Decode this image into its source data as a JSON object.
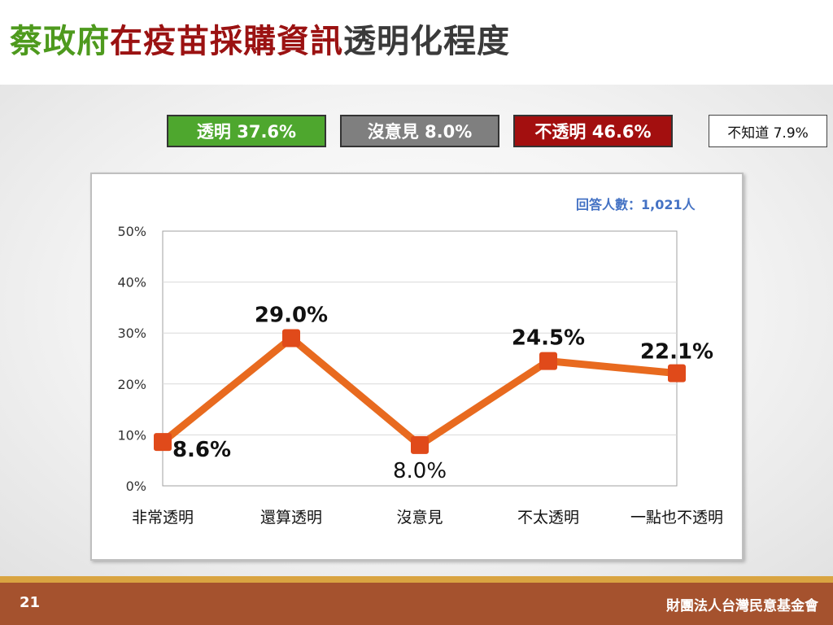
{
  "title": {
    "part1": "蔡政府",
    "part2": "在疫苗採購資訊",
    "part3": "透明化程度",
    "color1": "#4e9a1e",
    "color2": "#9b1212",
    "color3": "#3a3a3a"
  },
  "legend": [
    {
      "label": "透明 37.6%",
      "color": "#4ea72e"
    },
    {
      "label": "沒意見 8.0%",
      "color": "#7f7f7f"
    },
    {
      "label": "不透明 46.6%",
      "color": "#a30f0f"
    },
    {
      "label": "不知道 7.9%",
      "color": "#ffffff"
    }
  ],
  "respondents": "回答人數：1,021人",
  "chart_data": {
    "type": "line",
    "categories": [
      "非常透明",
      "還算透明",
      "沒意見",
      "不太透明",
      "一點也不透明"
    ],
    "series": [
      {
        "values": [
          8.6,
          29.0,
          8.0,
          24.5,
          22.1
        ],
        "color": "#e86a1f",
        "marker_color": "#e04a1a"
      }
    ],
    "data_labels": [
      "8.6%",
      "29.0%",
      "8.0%",
      "24.5%",
      "22.1%"
    ],
    "yticks": [
      "0%",
      "10%",
      "20%",
      "30%",
      "40%",
      "50%"
    ],
    "ylim": [
      0,
      50
    ],
    "grid": true
  },
  "footer": {
    "page": "21",
    "org": "財團法人台灣民意基金會"
  }
}
